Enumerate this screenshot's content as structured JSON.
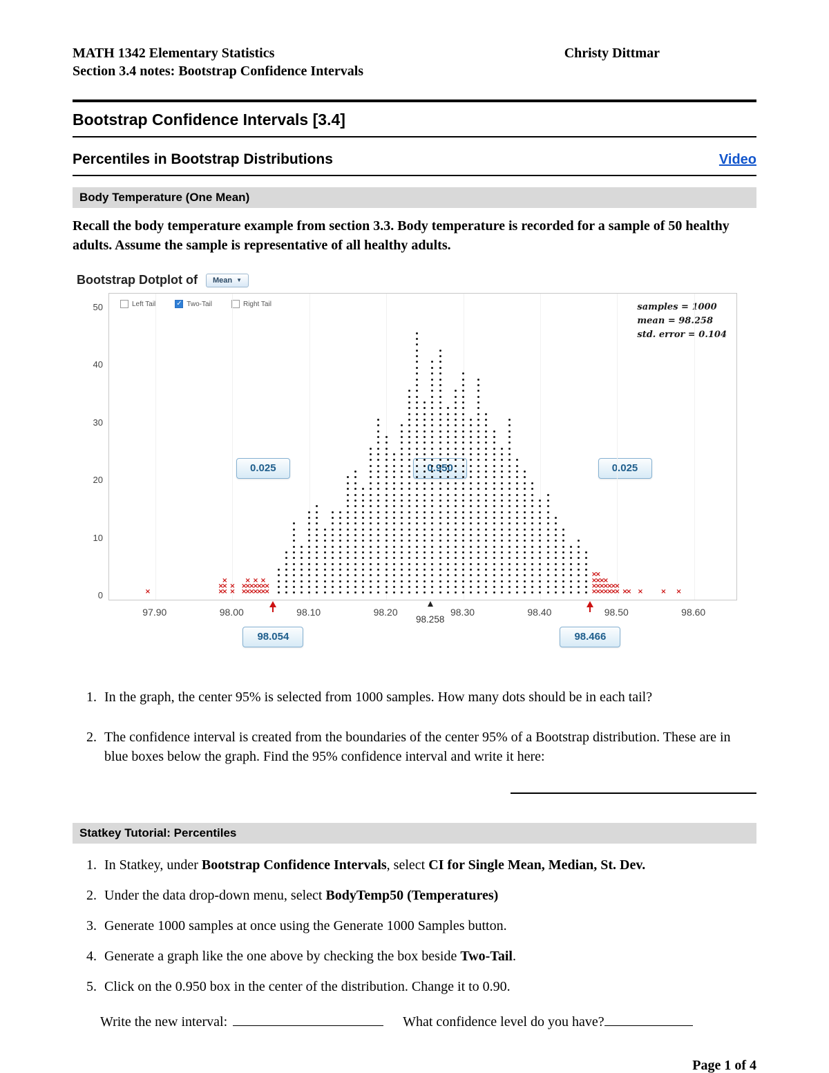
{
  "header": {
    "course": "MATH 1342 Elementary Statistics",
    "instructor": "Christy Dittmar",
    "subtitle": "Section 3.4 notes: Bootstrap Confidence Intervals"
  },
  "section_title": "Bootstrap Confidence Intervals [3.4]",
  "subsection": {
    "title": "Percentiles in Bootstrap Distributions",
    "video_label": "Video"
  },
  "body_temp_banner": "Body Temperature (One Mean)",
  "intro": "Recall the body temperature example from section 3.3. Body temperature is recorded for a sample of 50 healthy adults. Assume the sample is representative of all healthy adults.",
  "chart_data": {
    "type": "dotplot",
    "title": "Bootstrap Dotplot of",
    "dropdown_label": "Mean",
    "checkboxes": [
      {
        "label": "Left Tail",
        "checked": false
      },
      {
        "label": "Two-Tail",
        "checked": true
      },
      {
        "label": "Right Tail",
        "checked": false
      }
    ],
    "stats_lines": [
      "samples = 1000",
      "mean = 98.258",
      "std. error = 0.104"
    ],
    "ylim": [
      0,
      50
    ],
    "y_ticks": [
      0,
      10,
      20,
      30,
      40,
      50
    ],
    "x_ticks": [
      "97.90",
      "98.00",
      "98.10",
      "98.20",
      "98.30",
      "98.40",
      "98.50",
      "98.60"
    ],
    "x_tick_values": [
      97.9,
      98.0,
      98.1,
      98.2,
      98.3,
      98.4,
      98.5,
      98.6
    ],
    "xlim": [
      97.84,
      98.655
    ],
    "proportion_boxes": [
      {
        "value": "0.025",
        "x": 98.04
      },
      {
        "value": "0.950",
        "x": 98.27
      },
      {
        "value": "0.025",
        "x": 98.51
      }
    ],
    "boundaries": {
      "left": {
        "value": "98.054",
        "x": 98.054
      },
      "center": {
        "value": "98.258",
        "x": 98.258
      },
      "right": {
        "value": "98.466",
        "x": 98.466
      }
    },
    "bins_black": [
      [
        98.06,
        5
      ],
      [
        98.07,
        8
      ],
      [
        98.08,
        13
      ],
      [
        98.09,
        9
      ],
      [
        98.1,
        15
      ],
      [
        98.11,
        16
      ],
      [
        98.12,
        12
      ],
      [
        98.13,
        15
      ],
      [
        98.14,
        15
      ],
      [
        98.15,
        21
      ],
      [
        98.16,
        22
      ],
      [
        98.17,
        19
      ],
      [
        98.18,
        26
      ],
      [
        98.19,
        31
      ],
      [
        98.2,
        28
      ],
      [
        98.21,
        25
      ],
      [
        98.22,
        30
      ],
      [
        98.23,
        36
      ],
      [
        98.24,
        46
      ],
      [
        98.25,
        34
      ],
      [
        98.26,
        41
      ],
      [
        98.27,
        43
      ],
      [
        98.28,
        33
      ],
      [
        98.29,
        36
      ],
      [
        98.3,
        39
      ],
      [
        98.31,
        31
      ],
      [
        98.32,
        38
      ],
      [
        98.33,
        32
      ],
      [
        98.34,
        29
      ],
      [
        98.35,
        26
      ],
      [
        98.36,
        31
      ],
      [
        98.37,
        24
      ],
      [
        98.38,
        22
      ],
      [
        98.39,
        20
      ],
      [
        98.4,
        17
      ],
      [
        98.41,
        18
      ],
      [
        98.42,
        14
      ],
      [
        98.43,
        12
      ],
      [
        98.44,
        9
      ],
      [
        98.45,
        10
      ],
      [
        98.46,
        8
      ]
    ],
    "bins_red": [
      [
        97.89,
        1
      ],
      [
        97.985,
        2
      ],
      [
        97.99,
        3
      ],
      [
        98.0,
        2
      ],
      [
        98.015,
        2
      ],
      [
        98.02,
        3
      ],
      [
        98.025,
        2
      ],
      [
        98.03,
        3
      ],
      [
        98.035,
        2
      ],
      [
        98.04,
        3
      ],
      [
        98.045,
        2
      ],
      [
        98.47,
        4
      ],
      [
        98.475,
        4
      ],
      [
        98.48,
        3
      ],
      [
        98.485,
        3
      ],
      [
        98.49,
        2
      ],
      [
        98.495,
        2
      ],
      [
        98.5,
        2
      ],
      [
        98.51,
        1
      ],
      [
        98.515,
        1
      ],
      [
        98.53,
        1
      ],
      [
        98.56,
        1
      ],
      [
        98.58,
        1
      ]
    ]
  },
  "questions": [
    "In the graph, the center 95% is selected from 1000 samples. How many dots should be in each tail?",
    "The confidence interval is created from the boundaries of the center 95% of a Bootstrap distribution. These are in blue boxes below the graph. Find the 95% confidence interval and write it here:"
  ],
  "statkey": {
    "banner": "Statkey Tutorial: Percentiles",
    "steps": [
      [
        {
          "t": "In Statkey, under "
        },
        {
          "t": "Bootstrap Confidence Intervals",
          "b": true
        },
        {
          "t": ", select "
        },
        {
          "t": "CI for Single Mean, Median, St. Dev.",
          "b": true
        }
      ],
      [
        {
          "t": "Under the data drop-down menu, select "
        },
        {
          "t": "BodyTemp50 (Temperatures)",
          "b": true
        }
      ],
      [
        {
          "t": "Generate 1000 samples at once using the Generate 1000 Samples button."
        }
      ],
      [
        {
          "t": "Generate a graph like the one above by checking the box beside "
        },
        {
          "t": "Two-Tail",
          "b": true
        },
        {
          "t": "."
        }
      ],
      [
        {
          "t": "Click on the 0.950 box in the center of the distribution. Change it to 0.90."
        }
      ]
    ]
  },
  "footer": {
    "write_interval_label": "Write the new interval:",
    "confidence_label": "What confidence level do you have?",
    "page_label": "Page 1 of 4"
  }
}
